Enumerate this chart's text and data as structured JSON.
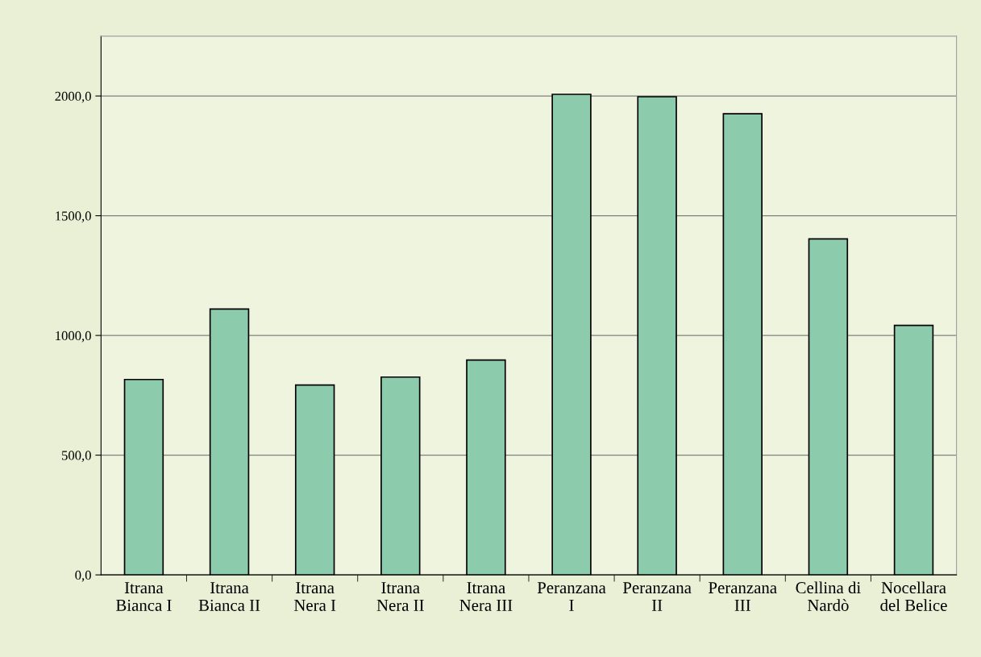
{
  "chart_data": {
    "type": "bar",
    "categories": [
      "Itrana\nBianca I",
      "Itrana\nBianca II",
      "Itrana\nNera I",
      "Itrana\nNera II",
      "Itrana\nNera III",
      "Peranzana\nI",
      "Peranzana\nII",
      "Peranzana\nIII",
      "Cellina di\nNardò",
      "Nocellara\ndel Belice"
    ],
    "values": [
      816,
      1110,
      793,
      826,
      897,
      2007,
      1997,
      1926,
      1403,
      1042
    ],
    "color": "#8ccbab",
    "ylim": [
      0,
      2250
    ],
    "yticks": [
      {
        "value": 0,
        "label": "0,0"
      },
      {
        "value": 500,
        "label": "500,0"
      },
      {
        "value": 1000,
        "label": "1000,0"
      },
      {
        "value": 1500,
        "label": "1500,0"
      },
      {
        "value": 2000,
        "label": "2000,0"
      }
    ],
    "grid": "y",
    "legend": false
  }
}
